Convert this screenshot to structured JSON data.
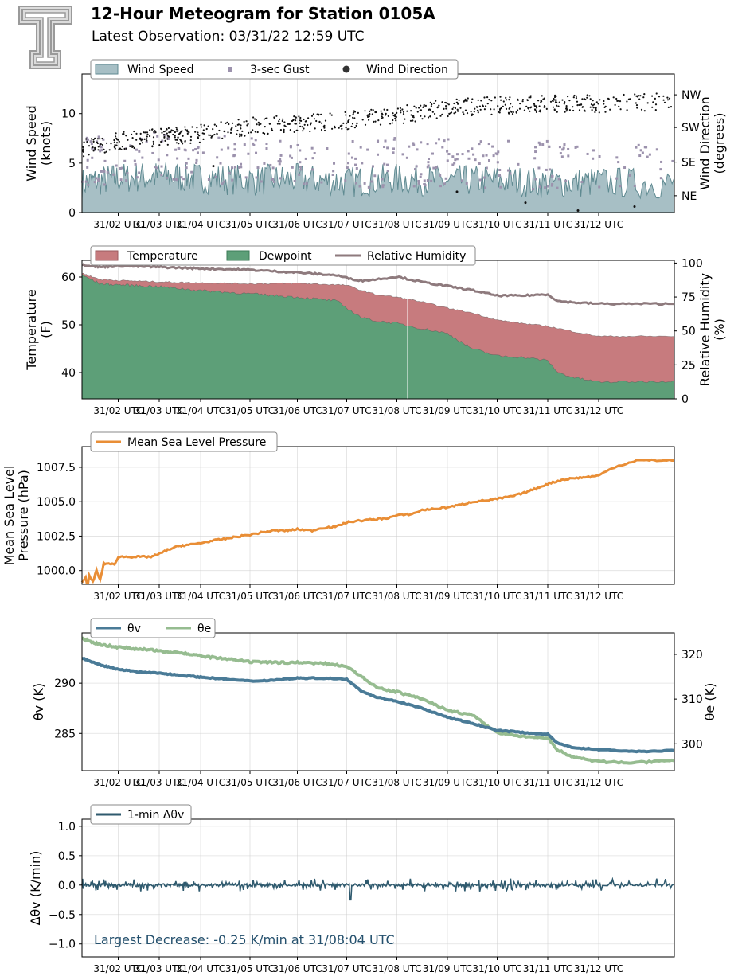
{
  "header": {
    "title": "12-Hour Meteogram for Station 0105A",
    "subtitle": "Latest Observation: 03/31/22 12:59 UTC"
  },
  "colors": {
    "wind_speed": "#a7bfc5",
    "wind_speed_line": "#5f8a91",
    "gust": "#9c92ad",
    "direction": "#111111",
    "temperature": "#c77b7e",
    "dewpoint": "#5d9f78",
    "rh": "#8e7a7d",
    "mslp": "#e98e36",
    "theta_v": "#4a7b97",
    "theta_e": "#96bc90",
    "dtheta": "#2f5a6e",
    "annotation": "#24506d"
  },
  "chart_data": [
    {
      "type": "area",
      "name": "wind",
      "x_ticks": [
        "31/02 UTC",
        "31/03 UTC",
        "31/04 UTC",
        "31/05 UTC",
        "31/06 UTC",
        "31/07 UTC",
        "31/08 UTC",
        "31/09 UTC",
        "31/10 UTC",
        "31/11 UTC",
        "31/12 UTC"
      ],
      "ylabel": "Wind Speed\n(knots)",
      "ylim": [
        0,
        14
      ],
      "y_ticks": [
        0,
        5,
        10
      ],
      "y2label": "Wind Direction\n(degrees)",
      "y2_ticks": [
        "NE",
        "SE",
        "SW",
        "NW"
      ],
      "legend": [
        "Wind Speed",
        "3-sec Gust",
        "Wind Direction"
      ],
      "legend_position": "top-left",
      "grid": true,
      "series": [
        {
          "name": "Wind Speed",
          "values_by_hour": [
            2.5,
            3.0,
            3.2,
            3.0,
            2.8,
            2.9,
            2.6,
            2.9,
            2.7,
            2.8,
            2.5,
            2.6,
            2.4
          ]
        },
        {
          "name": "3-sec Gust",
          "values_by_hour": [
            5.0,
            5.5,
            6.0,
            5.5,
            5.0,
            5.3,
            4.8,
            5.2,
            5.0,
            5.0,
            4.8,
            4.8,
            4.6
          ]
        },
        {
          "name": "Wind Direction",
          "values_by_hour": [
            6.5,
            7.2,
            7.6,
            8.0,
            8.7,
            9.0,
            9.3,
            9.8,
            10.6,
            10.8,
            11.0,
            11.0,
            11.2
          ]
        }
      ]
    },
    {
      "type": "area",
      "name": "thermo",
      "x_ticks": [
        "31/02 UTC",
        "31/03 UTC",
        "31/04 UTC",
        "31/05 UTC",
        "31/06 UTC",
        "31/07 UTC",
        "31/08 UTC",
        "31/09 UTC",
        "31/10 UTC",
        "31/11 UTC",
        "31/12 UTC"
      ],
      "ylabel": "Temperature\n(F)",
      "ylim": [
        34.5,
        63.5
      ],
      "y_ticks": [
        40,
        50,
        60
      ],
      "y2label": "Relative Humidity\n(%)",
      "y2lim": [
        0,
        102
      ],
      "y2_ticks": [
        0,
        25,
        50,
        75,
        100
      ],
      "legend": [
        "Temperature",
        "Dewpoint",
        "Relative Humidity"
      ],
      "legend_position": "top-left",
      "grid": true,
      "series": [
        {
          "name": "Temperature",
          "x": [
            1,
            1.5,
            2,
            3,
            4,
            5,
            6,
            7,
            7.3,
            7.6,
            8,
            8.5,
            9,
            9.5,
            10,
            10.5,
            11,
            11.5,
            12,
            13
          ],
          "values": [
            60.8,
            59.5,
            59.3,
            59.0,
            58.8,
            58.6,
            58.7,
            58.3,
            57.2,
            56.3,
            55.8,
            54.8,
            53.5,
            52.5,
            51.0,
            50.3,
            49.7,
            48.6,
            47.6,
            47.6
          ]
        },
        {
          "name": "Dewpoint",
          "x": [
            1,
            1.5,
            2,
            3,
            4,
            5,
            6,
            6.8,
            7,
            7.3,
            7.6,
            8,
            8.5,
            9,
            9.5,
            10,
            10.5,
            11,
            11.2,
            11.5,
            12,
            13
          ],
          "values": [
            60.4,
            58.6,
            58.4,
            58.0,
            57.2,
            56.5,
            55.8,
            55.0,
            53.5,
            51.5,
            50.8,
            50.3,
            49.2,
            48.2,
            45.0,
            43.5,
            43.2,
            42.5,
            40.0,
            39.0,
            38.0,
            38.2
          ]
        },
        {
          "name": "Relative Humidity",
          "x": [
            1,
            1.5,
            2,
            3,
            4,
            5,
            6,
            6.8,
            7,
            7.3,
            7.6,
            8,
            8.5,
            9,
            9.5,
            10,
            10.5,
            11,
            11.2,
            11.5,
            12,
            13
          ],
          "values": [
            99,
            97,
            98,
            97,
            96,
            95,
            93,
            91,
            89,
            87,
            88,
            90,
            86,
            83,
            80,
            76,
            76,
            77,
            72,
            71,
            70,
            70
          ]
        }
      ]
    },
    {
      "type": "line",
      "name": "mslp",
      "x_ticks": [
        "31/02 UTC",
        "31/03 UTC",
        "31/04 UTC",
        "31/05 UTC",
        "31/06 UTC",
        "31/07 UTC",
        "31/08 UTC",
        "31/09 UTC",
        "31/10 UTC",
        "31/11 UTC",
        "31/12 UTC"
      ],
      "ylabel": "Mean Sea Level\nPressure (hPa)",
      "ylim": [
        999.0,
        1009.0
      ],
      "y_ticks": [
        1000.0,
        1002.5,
        1005.0,
        1007.5
      ],
      "y_tick_labels": [
        "1000.0",
        "1002.5",
        "1005.0",
        "1007.5"
      ],
      "legend": [
        "Mean Sea Level Pressure"
      ],
      "legend_position": "top-left",
      "grid": true,
      "series": [
        {
          "name": "Mean Sea Level Pressure",
          "x": [
            1,
            1.1,
            1.15,
            1.2,
            1.3,
            1.4,
            1.5,
            1.6,
            1.8,
            1.9,
            2,
            2.2,
            2.5,
            2.8,
            3,
            3.2,
            3.5,
            3.8,
            4,
            4.3,
            4.5,
            4.8,
            5,
            5.3,
            5.5,
            5.8,
            6,
            6.3,
            6.5,
            6.8,
            7,
            7.2,
            7.5,
            7.8,
            8,
            8.3,
            8.5,
            8.8,
            9,
            9.3,
            9.5,
            9.8,
            10,
            10.3,
            10.5,
            10.8,
            11,
            11.3,
            11.5,
            11.8,
            12,
            12.2,
            12.5,
            13
          ],
          "values": [
            999.2,
            999.5,
            998.8,
            999.6,
            999.2,
            1000.0,
            999.3,
            1000.5,
            1000.5,
            1000.4,
            1001.0,
            1001.0,
            1001.0,
            1001.0,
            1001.2,
            1001.5,
            1001.8,
            1001.9,
            1002.0,
            1002.2,
            1002.3,
            1002.5,
            1002.6,
            1002.8,
            1002.9,
            1002.9,
            1003.0,
            1002.9,
            1003.1,
            1003.2,
            1003.5,
            1003.6,
            1003.7,
            1003.8,
            1004.0,
            1004.1,
            1004.4,
            1004.5,
            1004.6,
            1004.8,
            1005.0,
            1005.1,
            1005.2,
            1005.4,
            1005.6,
            1006.0,
            1006.3,
            1006.6,
            1006.7,
            1006.8,
            1006.9,
            1007.5,
            1008.0,
            1008.0
          ]
        }
      ]
    },
    {
      "type": "line",
      "name": "theta",
      "x_ticks": [
        "31/02 UTC",
        "31/03 UTC",
        "31/04 UTC",
        "31/05 UTC",
        "31/06 UTC",
        "31/07 UTC",
        "31/08 UTC",
        "31/09 UTC",
        "31/10 UTC",
        "31/11 UTC",
        "31/12 UTC"
      ],
      "ylabel": "θv (K)",
      "ylim": [
        281.3,
        295.0
      ],
      "y_ticks": [
        285,
        290
      ],
      "y2label": "θe (K)",
      "y2lim": [
        294,
        324.8
      ],
      "y2_ticks": [
        300,
        310,
        320
      ],
      "legend": [
        "θv",
        "θe"
      ],
      "legend_position": "top-left",
      "grid": true,
      "series": [
        {
          "name": "θv",
          "axis": "left",
          "x": [
            1,
            1.5,
            2,
            2.5,
            3,
            3.5,
            4,
            4.5,
            5,
            5.5,
            6,
            6.5,
            7,
            7.3,
            7.6,
            8,
            8.5,
            9,
            9.5,
            10,
            10.5,
            11,
            11.2,
            11.5,
            12,
            12.5,
            13
          ],
          "values": [
            292.5,
            291.8,
            291.4,
            291.1,
            291.0,
            290.8,
            290.6,
            290.4,
            290.2,
            290.3,
            290.5,
            290.5,
            290.4,
            289.2,
            288.6,
            288.2,
            287.5,
            286.6,
            286.0,
            285.3,
            285.1,
            284.9,
            284.0,
            283.6,
            283.4,
            283.2,
            283.3
          ]
        },
        {
          "name": "θe",
          "axis": "right",
          "x": [
            1,
            1.5,
            2,
            2.5,
            3,
            3.5,
            4,
            4.5,
            5,
            5.5,
            6,
            6.5,
            7,
            7.3,
            7.6,
            8,
            8.5,
            9,
            9.5,
            10,
            10.5,
            11,
            11.2,
            11.5,
            12,
            12.5,
            13
          ],
          "values": [
            323.5,
            322.2,
            321.6,
            321.2,
            320.8,
            320.4,
            319.6,
            319.0,
            318.3,
            318.2,
            318.2,
            318.0,
            317.4,
            315.0,
            312.5,
            311.6,
            310.0,
            307.5,
            306.4,
            302.5,
            301.6,
            301.3,
            298.6,
            297.0,
            296.0,
            295.8,
            296.2
          ]
        }
      ]
    },
    {
      "type": "line",
      "name": "dtheta",
      "x_ticks": [
        "31/02 UTC",
        "31/03 UTC",
        "31/04 UTC",
        "31/05 UTC",
        "31/06 UTC",
        "31/07 UTC",
        "31/08 UTC",
        "31/09 UTC",
        "31/10 UTC",
        "31/11 UTC",
        "31/12 UTC"
      ],
      "ylabel": "Δθv (K/min)",
      "ylim": [
        -1.22,
        1.12
      ],
      "y_ticks": [
        -1.0,
        -0.5,
        0.0,
        0.5,
        1.0
      ],
      "y_tick_labels": [
        "−1.0",
        "−0.5",
        "0.0",
        "0.5",
        "1.0"
      ],
      "legend": [
        "1-min Δθv"
      ],
      "legend_position": "top-left",
      "grid": true,
      "annotation": "Largest Decrease: -0.25 K/min at 31/08:04 UTC",
      "series": [
        {
          "name": "1-min Δθv",
          "baseline": 0.0,
          "amplitude": 0.1,
          "largest_decrease": {
            "x": "31/08:04 UTC",
            "value": -0.25
          }
        }
      ]
    }
  ]
}
